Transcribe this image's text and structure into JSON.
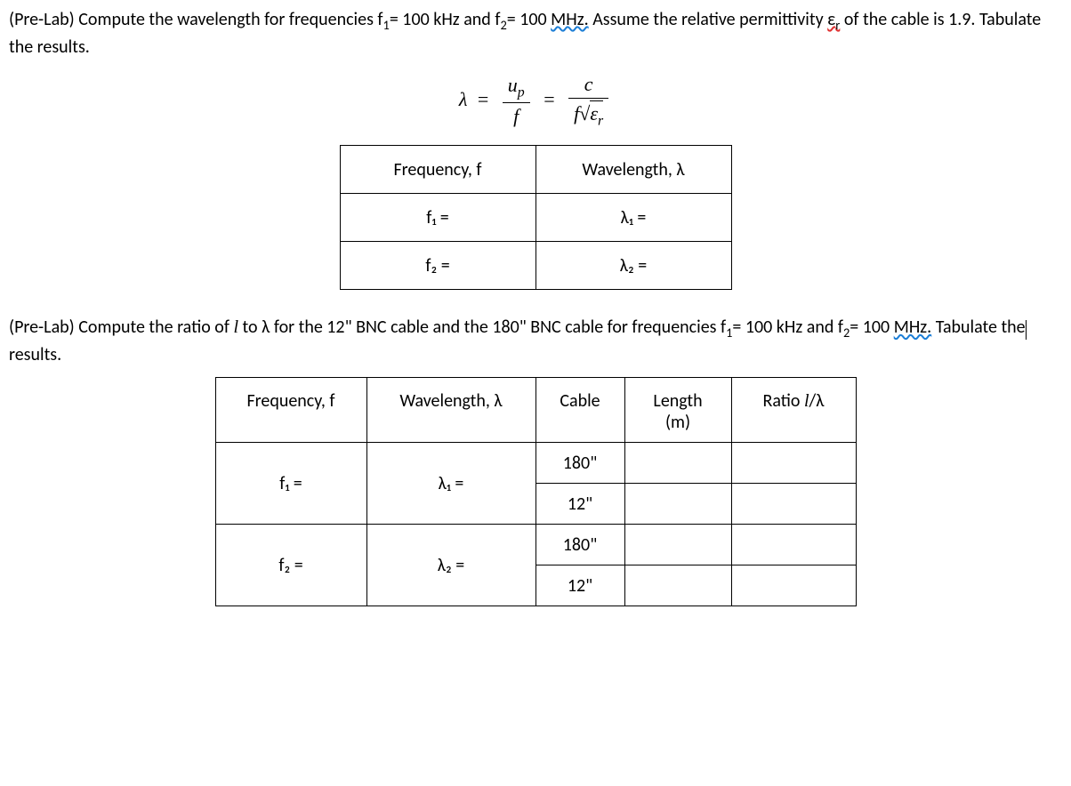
{
  "section1": {
    "label": "(Pre-Lab)",
    "text_before": " Compute the wavelength for frequencies f",
    "sub1": "1",
    "eq1": "= 100 kHz and f",
    "sub2": "2",
    "eq2": "= 100 ",
    "mhz": "MHz.",
    "text_after1": " Assume the relative permittivity ",
    "eps": "ε",
    "eps_sub": "r",
    "text_after2": " of the cable is 1.9. Tabulate the results."
  },
  "formula": {
    "lambda": "λ",
    "eq": "=",
    "up": "u",
    "up_sub": "p",
    "f": "f",
    "c": "c",
    "eps": "ε",
    "eps_sub": "r"
  },
  "table1": {
    "headers": [
      "Frequency, f",
      "Wavelength, λ"
    ],
    "rows": [
      {
        "freq": "f₁ =",
        "wave": "λ₁ ="
      },
      {
        "freq": "f₂ =",
        "wave": "λ₂ ="
      }
    ]
  },
  "section2": {
    "label": "(Pre-Lab)",
    "text1": " Compute the ratio of ",
    "l": "l",
    "text2": " to λ for the 12\" BNC cable and the 180\" BNC cable for frequencies f",
    "sub1": "1",
    "eq1": "= 100 kHz and f",
    "sub2": "2",
    "eq2": "= 100 ",
    "mhz": "MHz.",
    "text3": " Tabulate the",
    "text4": " results."
  },
  "table2": {
    "headers": {
      "freq": "Frequency, f",
      "wave": "Wavelength, λ",
      "cable": "Cable",
      "length_l1": "Length",
      "length_l2": "(m)",
      "ratio_pre": "Ratio ",
      "ratio_l": "l",
      "ratio_post": "/λ"
    },
    "rows": [
      {
        "freq": "f₁ =",
        "wave": "λ₁ =",
        "cable": "180\""
      },
      {
        "cable": "12\""
      },
      {
        "freq": "f₂ =",
        "wave": "λ₂ =",
        "cable": "180\""
      },
      {
        "cable": "12\""
      }
    ]
  },
  "style": {
    "background_color": "#ffffff",
    "text_color": "#000000",
    "squiggle_red": "#e03131",
    "squiggle_blue": "#1c7ed6",
    "font_family": "Calibri, Arial, sans-serif",
    "base_fontsize": 20,
    "formula_fontsize": 22,
    "border_color": "#000000",
    "border_width": 1.5
  }
}
